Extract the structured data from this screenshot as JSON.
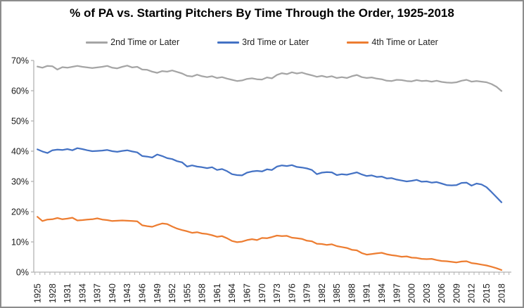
{
  "chart_data": {
    "type": "line",
    "title": "% of PA vs. Starting Pitchers By Time Through the Order, 1925-2018",
    "xlabel": "",
    "ylabel": "",
    "grid": false,
    "legend_position": "top",
    "ylim": [
      0,
      70
    ],
    "y_tick_labels": [
      "0%",
      "10%",
      "20%",
      "30%",
      "40%",
      "50%",
      "60%",
      "70%"
    ],
    "x_tick_labels": [
      "1925",
      "1928",
      "1931",
      "1934",
      "1937",
      "1940",
      "1943",
      "1946",
      "1949",
      "1952",
      "1955",
      "1958",
      "1961",
      "1964",
      "1967",
      "1970",
      "1973",
      "1976",
      "1979",
      "1982",
      "1985",
      "1988",
      "1991",
      "1994",
      "1997",
      "2000",
      "2003",
      "2006",
      "2009",
      "2012",
      "2015",
      "2018"
    ],
    "x": [
      1925,
      1926,
      1927,
      1928,
      1929,
      1930,
      1931,
      1932,
      1933,
      1934,
      1935,
      1936,
      1937,
      1938,
      1939,
      1940,
      1941,
      1942,
      1943,
      1944,
      1945,
      1946,
      1947,
      1948,
      1949,
      1950,
      1951,
      1952,
      1953,
      1954,
      1955,
      1956,
      1957,
      1958,
      1959,
      1960,
      1961,
      1962,
      1963,
      1964,
      1965,
      1966,
      1967,
      1968,
      1969,
      1970,
      1971,
      1972,
      1973,
      1974,
      1975,
      1976,
      1977,
      1978,
      1979,
      1980,
      1981,
      1982,
      1983,
      1984,
      1985,
      1986,
      1987,
      1988,
      1989,
      1990,
      1991,
      1992,
      1993,
      1994,
      1995,
      1996,
      1997,
      1998,
      1999,
      2000,
      2001,
      2002,
      2003,
      2004,
      2005,
      2006,
      2007,
      2008,
      2009,
      2010,
      2011,
      2012,
      2013,
      2014,
      2015,
      2016,
      2017,
      2018
    ],
    "series": [
      {
        "name": "2nd Time or Later",
        "color": "#a5a5a5",
        "values": [
          68.0,
          67.6,
          68.2,
          68.1,
          67.0,
          67.8,
          67.6,
          67.9,
          68.2,
          67.9,
          67.7,
          67.5,
          67.7,
          67.9,
          68.2,
          67.6,
          67.4,
          67.9,
          68.3,
          67.7,
          67.9,
          67.0,
          66.9,
          66.3,
          65.9,
          66.5,
          66.3,
          66.7,
          66.2,
          65.7,
          64.9,
          64.7,
          65.3,
          64.8,
          64.5,
          64.8,
          64.2,
          64.5,
          64.0,
          63.6,
          63.2,
          63.4,
          63.9,
          64.1,
          63.8,
          63.7,
          64.4,
          64.1,
          65.2,
          65.8,
          65.5,
          66.1,
          65.7,
          66.0,
          65.5,
          65.1,
          64.6,
          64.9,
          64.5,
          64.8,
          64.2,
          64.5,
          64.2,
          64.8,
          65.2,
          64.5,
          64.2,
          64.4,
          64.0,
          63.8,
          63.3,
          63.2,
          63.6,
          63.5,
          63.2,
          63.1,
          63.5,
          63.2,
          63.3,
          63.0,
          63.3,
          62.9,
          62.7,
          62.6,
          62.8,
          63.3,
          63.6,
          63.0,
          63.2,
          63.0,
          62.8,
          62.2,
          61.3,
          59.9
        ]
      },
      {
        "name": "3rd Time or Later",
        "color": "#4472c4",
        "values": [
          40.6,
          39.9,
          39.4,
          40.3,
          40.5,
          40.4,
          40.7,
          40.3,
          41.0,
          40.7,
          40.3,
          40.0,
          40.1,
          40.2,
          40.4,
          40.0,
          39.8,
          40.1,
          40.3,
          39.9,
          39.6,
          38.4,
          38.2,
          37.9,
          38.9,
          38.4,
          37.7,
          37.4,
          36.7,
          36.3,
          34.9,
          35.3,
          34.9,
          34.7,
          34.4,
          34.7,
          33.8,
          34.1,
          33.4,
          32.4,
          32.1,
          32.0,
          32.9,
          33.3,
          33.5,
          33.3,
          34.0,
          33.8,
          34.9,
          35.3,
          35.1,
          35.4,
          34.8,
          34.6,
          34.3,
          33.8,
          32.4,
          32.9,
          33.1,
          33.0,
          32.1,
          32.4,
          32.2,
          32.6,
          33.0,
          32.3,
          31.8,
          32.0,
          31.5,
          31.6,
          31.0,
          31.1,
          30.6,
          30.3,
          30.0,
          30.2,
          30.5,
          29.9,
          30.0,
          29.6,
          29.8,
          29.3,
          28.8,
          28.7,
          28.8,
          29.5,
          29.6,
          28.6,
          29.3,
          29.0,
          28.1,
          26.5,
          24.8,
          23.1
        ]
      },
      {
        "name": "4th Time or Later",
        "color": "#ed7d31",
        "values": [
          18.3,
          16.9,
          17.4,
          17.5,
          17.9,
          17.5,
          17.7,
          18.0,
          17.1,
          17.2,
          17.4,
          17.5,
          17.8,
          17.4,
          17.2,
          16.9,
          17.0,
          17.1,
          17.0,
          16.9,
          16.8,
          15.5,
          15.2,
          15.0,
          15.6,
          16.1,
          15.9,
          15.1,
          14.4,
          13.9,
          13.5,
          13.0,
          13.2,
          12.8,
          12.6,
          12.2,
          11.7,
          11.9,
          11.2,
          10.3,
          9.9,
          10.1,
          10.6,
          10.9,
          10.6,
          11.3,
          11.2,
          11.6,
          12.1,
          11.9,
          12.0,
          11.4,
          11.2,
          11.0,
          10.4,
          10.2,
          9.4,
          9.3,
          9.0,
          9.2,
          8.6,
          8.3,
          8.0,
          7.4,
          7.2,
          6.3,
          5.8,
          6.0,
          6.2,
          6.4,
          5.9,
          5.6,
          5.4,
          5.1,
          5.2,
          4.8,
          4.7,
          4.4,
          4.3,
          4.4,
          4.0,
          3.7,
          3.6,
          3.4,
          3.2,
          3.5,
          3.6,
          3.0,
          2.8,
          2.5,
          2.2,
          1.8,
          1.3,
          0.7
        ]
      }
    ],
    "axis_color": "#b3b3b3",
    "tick_label_color": "#1a1a1a"
  }
}
